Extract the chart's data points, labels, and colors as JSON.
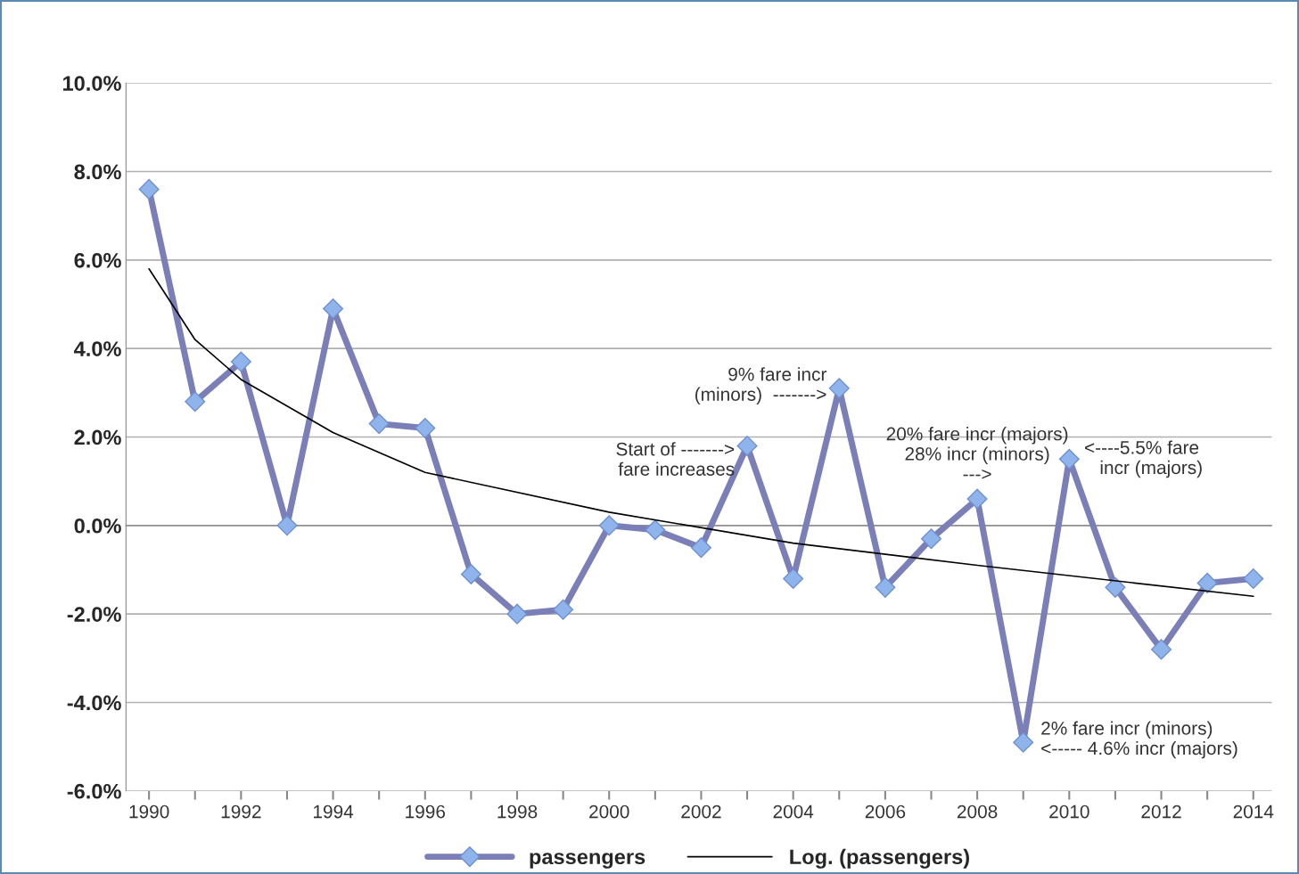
{
  "chart_data": {
    "type": "line",
    "x": [
      1990,
      1991,
      1992,
      1993,
      1994,
      1995,
      1996,
      1997,
      1998,
      1999,
      2000,
      2001,
      2002,
      2003,
      2004,
      2005,
      2006,
      2007,
      2008,
      2009,
      2010,
      2011,
      2012,
      2013,
      2014
    ],
    "series": [
      {
        "name": "passengers",
        "color": "#7b7fb8",
        "marker": "diamond",
        "values": [
          7.6,
          2.8,
          3.7,
          0.0,
          4.9,
          2.3,
          2.2,
          -1.1,
          -2.0,
          -1.9,
          0.0,
          -0.1,
          -0.5,
          1.8,
          -1.2,
          3.1,
          -1.4,
          -0.3,
          0.6,
          -4.9,
          1.5,
          -1.4,
          -2.8,
          -1.3,
          -1.2
        ]
      },
      {
        "name": "Log. (passengers)",
        "color": "#000000",
        "marker": "none",
        "x": [
          1990,
          1991,
          1992,
          1994,
          1996,
          2000,
          2004,
          2008,
          2014
        ],
        "values": [
          5.8,
          4.2,
          3.3,
          2.1,
          1.2,
          0.3,
          -0.4,
          -0.9,
          -1.6
        ]
      }
    ],
    "xlim": [
      1989.5,
      2014.4
    ],
    "xticks": [
      1990,
      {
        "value": 1991,
        "label": null
      },
      1992,
      {
        "value": 1993,
        "label": null
      },
      1994,
      {
        "value": 1995,
        "label": null
      },
      1996,
      {
        "value": 1997,
        "label": null
      },
      1998,
      {
        "value": 1999,
        "label": null
      },
      2000,
      {
        "value": 2001,
        "label": null
      },
      2002,
      {
        "value": 2003,
        "label": null
      },
      2004,
      {
        "value": 2005,
        "label": null
      },
      2006,
      {
        "value": 2007,
        "label": null
      },
      2008,
      {
        "value": 2009,
        "label": null
      },
      2010,
      {
        "value": 2011,
        "label": null
      },
      2012,
      {
        "value": 2013,
        "label": null
      },
      2014
    ],
    "ylim": [
      -6,
      10
    ],
    "yticks": [
      {
        "value": -6,
        "label": "-6.0%"
      },
      {
        "value": -4,
        "label": "-4.0%"
      },
      {
        "value": -2,
        "label": "-2.0%"
      },
      {
        "value": 0,
        "label": "0.0%"
      },
      {
        "value": 2,
        "label": "2.0%"
      },
      {
        "value": 4,
        "label": "4.0%"
      },
      {
        "value": 6,
        "label": "6.0%"
      },
      {
        "value": 8,
        "label": "8.0%"
      },
      {
        "value": 10,
        "label": "10.0%"
      }
    ],
    "grid": "y",
    "legend": "bottom",
    "line_style": "solid",
    "annotations": [
      {
        "text": "Start of ------->\nfare increases",
        "x": 2003,
        "y": 1.8
      },
      {
        "text": "9% fare incr\n(minors)  ------->",
        "x": 2005,
        "y": 3.1
      },
      {
        "text": "20% fare incr (majors)\n28% incr (minors)\n--->",
        "x": 2008,
        "y": 0.6
      },
      {
        "text": "<----5.5% fare\n   incr (majors)",
        "x": 2010,
        "y": 1.5
      },
      {
        "text": "2% fare incr (minors)\n<----- 4.6% incr (majors)",
        "x": 2009,
        "y": -4.9
      }
    ]
  }
}
